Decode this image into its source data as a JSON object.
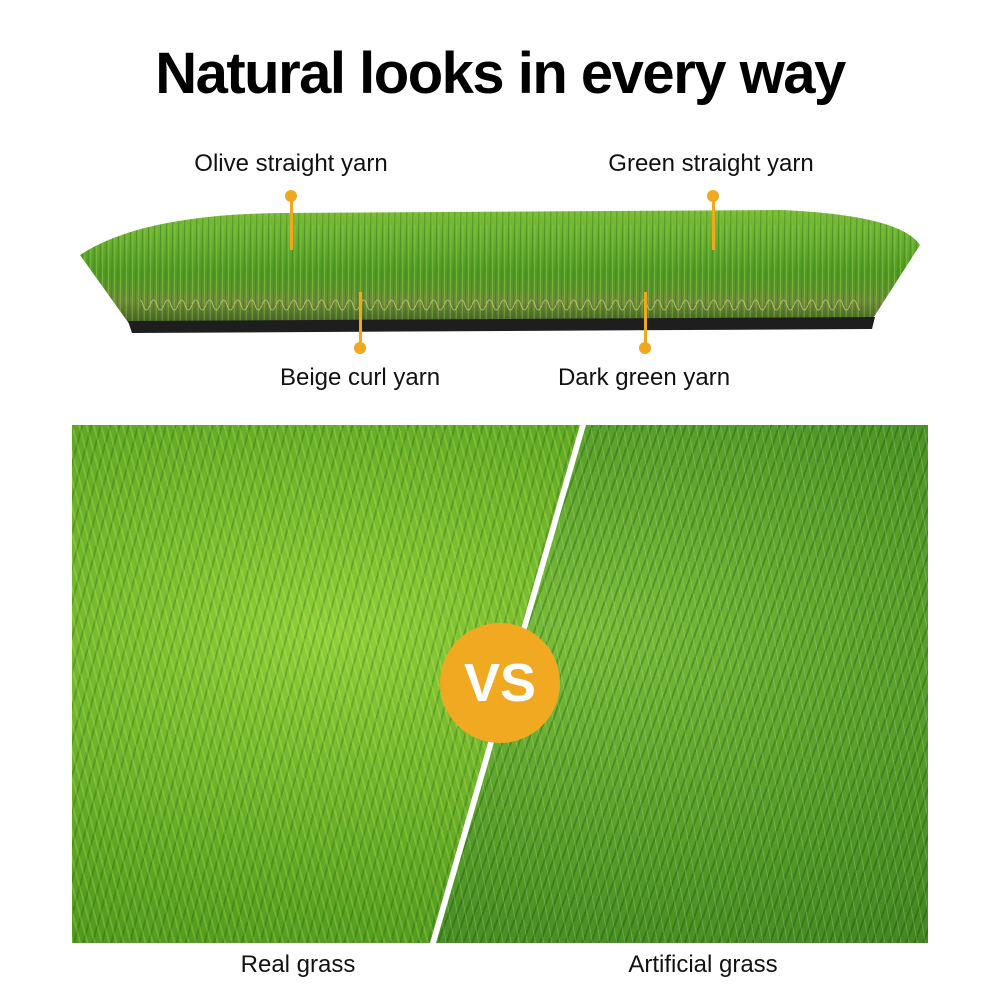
{
  "title": "Natural looks in every way",
  "yarn_labels": {
    "olive": "Olive straight yarn",
    "green": "Green straight yarn",
    "beige": "Beige curl yarn",
    "dark_green": "Dark green yarn"
  },
  "comparison": {
    "badge": "VS",
    "left_label": "Real grass",
    "right_label": "Artificial grass"
  },
  "colors": {
    "accent": "#f2a922",
    "grass": "#5aa422"
  }
}
